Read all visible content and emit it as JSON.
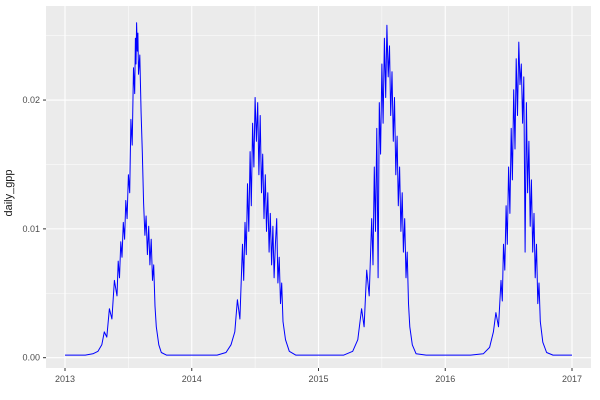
{
  "figure": {
    "background": "#FFFFFF",
    "panel_background": "#EBEBEB",
    "grid_color": "#FFFFFF",
    "axis_text_color": "#4D4D4D",
    "tick_mark_color": "#333333",
    "line_color": "#0000FF"
  },
  "chart_data": {
    "type": "line",
    "title": "",
    "xlabel": "",
    "ylabel": "daily_gpp",
    "grid": true,
    "legend": false,
    "xlim": [
      2012.85,
      2017.15
    ],
    "ylim": [
      -0.0008,
      0.0273
    ],
    "x_ticks": [
      2013,
      2014,
      2015,
      2016,
      2017
    ],
    "x_tick_labels": [
      "2013",
      "2014",
      "2015",
      "2016",
      "2017"
    ],
    "x_minor_ticks": [
      2013.5,
      2014.5,
      2015.5,
      2016.5
    ],
    "y_ticks": [
      0,
      0.01,
      0.02
    ],
    "y_tick_labels": [
      "0.00",
      "0.01",
      "0.02"
    ],
    "y_minor_ticks": [
      0.005,
      0.015,
      0.025
    ],
    "series": [
      {
        "name": "daily_gpp",
        "color": "#0000FF",
        "points": [
          [
            2013.0,
            0.0002
          ],
          [
            2013.08,
            0.0002
          ],
          [
            2013.16,
            0.0002
          ],
          [
            2013.22,
            0.0003
          ],
          [
            2013.26,
            0.0005
          ],
          [
            2013.29,
            0.001
          ],
          [
            2013.31,
            0.002
          ],
          [
            2013.33,
            0.0016
          ],
          [
            2013.35,
            0.0038
          ],
          [
            2013.37,
            0.003
          ],
          [
            2013.39,
            0.006
          ],
          [
            2013.41,
            0.0048
          ],
          [
            2013.42,
            0.0075
          ],
          [
            2013.43,
            0.0062
          ],
          [
            2013.44,
            0.009
          ],
          [
            2013.45,
            0.0078
          ],
          [
            2013.46,
            0.0105
          ],
          [
            2013.47,
            0.0092
          ],
          [
            2013.48,
            0.0122
          ],
          [
            2013.49,
            0.0108
          ],
          [
            2013.5,
            0.0142
          ],
          [
            2013.51,
            0.0128
          ],
          [
            2013.52,
            0.0185
          ],
          [
            2013.53,
            0.0165
          ],
          [
            2013.54,
            0.0225
          ],
          [
            2013.55,
            0.0205
          ],
          [
            2013.555,
            0.0248
          ],
          [
            2013.56,
            0.0228
          ],
          [
            2013.565,
            0.026
          ],
          [
            2013.57,
            0.0238
          ],
          [
            2013.575,
            0.0252
          ],
          [
            2013.58,
            0.022
          ],
          [
            2013.59,
            0.0235
          ],
          [
            2013.6,
            0.019
          ],
          [
            2013.61,
            0.016
          ],
          [
            2013.62,
            0.012
          ],
          [
            2013.63,
            0.0095
          ],
          [
            2013.64,
            0.011
          ],
          [
            2013.65,
            0.008
          ],
          [
            2013.66,
            0.0102
          ],
          [
            2013.67,
            0.0072
          ],
          [
            2013.68,
            0.0092
          ],
          [
            2013.69,
            0.006
          ],
          [
            2013.7,
            0.0072
          ],
          [
            2013.71,
            0.004
          ],
          [
            2013.72,
            0.0024
          ],
          [
            2013.74,
            0.001
          ],
          [
            2013.76,
            0.0004
          ],
          [
            2013.8,
            0.0002
          ],
          [
            2013.9,
            0.0002
          ],
          [
            2014.0,
            0.0002
          ],
          [
            2014.1,
            0.0002
          ],
          [
            2014.2,
            0.0002
          ],
          [
            2014.27,
            0.0004
          ],
          [
            2014.31,
            0.001
          ],
          [
            2014.34,
            0.002
          ],
          [
            2014.36,
            0.0045
          ],
          [
            2014.38,
            0.003
          ],
          [
            2014.4,
            0.0088
          ],
          [
            2014.41,
            0.006
          ],
          [
            2014.42,
            0.0105
          ],
          [
            2014.43,
            0.008
          ],
          [
            2014.44,
            0.0135
          ],
          [
            2014.45,
            0.0098
          ],
          [
            2014.46,
            0.016
          ],
          [
            2014.47,
            0.0118
          ],
          [
            2014.48,
            0.0182
          ],
          [
            2014.49,
            0.0148
          ],
          [
            2014.5,
            0.0202
          ],
          [
            2014.51,
            0.0168
          ],
          [
            2014.52,
            0.0198
          ],
          [
            2014.53,
            0.0142
          ],
          [
            2014.54,
            0.0188
          ],
          [
            2014.55,
            0.0128
          ],
          [
            2014.56,
            0.0158
          ],
          [
            2014.57,
            0.0108
          ],
          [
            2014.58,
            0.0142
          ],
          [
            2014.59,
            0.0098
          ],
          [
            2014.6,
            0.0128
          ],
          [
            2014.61,
            0.0082
          ],
          [
            2014.62,
            0.0112
          ],
          [
            2014.63,
            0.0072
          ],
          [
            2014.64,
            0.0102
          ],
          [
            2014.65,
            0.0062
          ],
          [
            2014.66,
            0.0088
          ],
          [
            2014.67,
            0.0108
          ],
          [
            2014.68,
            0.0058
          ],
          [
            2014.69,
            0.0078
          ],
          [
            2014.7,
            0.0042
          ],
          [
            2014.71,
            0.0058
          ],
          [
            2014.72,
            0.0028
          ],
          [
            2014.74,
            0.0014
          ],
          [
            2014.77,
            0.0005
          ],
          [
            2014.82,
            0.0002
          ],
          [
            2014.9,
            0.0002
          ],
          [
            2015.0,
            0.0002
          ],
          [
            2015.1,
            0.0002
          ],
          [
            2015.2,
            0.0002
          ],
          [
            2015.27,
            0.0005
          ],
          [
            2015.31,
            0.0014
          ],
          [
            2015.34,
            0.0038
          ],
          [
            2015.36,
            0.0024
          ],
          [
            2015.38,
            0.0068
          ],
          [
            2015.4,
            0.0048
          ],
          [
            2015.42,
            0.0108
          ],
          [
            2015.43,
            0.0072
          ],
          [
            2015.44,
            0.0148
          ],
          [
            2015.45,
            0.0098
          ],
          [
            2015.46,
            0.0178
          ],
          [
            2015.47,
            0.0062
          ],
          [
            2015.48,
            0.0198
          ],
          [
            2015.49,
            0.0158
          ],
          [
            2015.5,
            0.0228
          ],
          [
            2015.51,
            0.0182
          ],
          [
            2015.52,
            0.0248
          ],
          [
            2015.53,
            0.0202
          ],
          [
            2015.54,
            0.0258
          ],
          [
            2015.55,
            0.0218
          ],
          [
            2015.56,
            0.0242
          ],
          [
            2015.57,
            0.0188
          ],
          [
            2015.58,
            0.0222
          ],
          [
            2015.59,
            0.0168
          ],
          [
            2015.6,
            0.0202
          ],
          [
            2015.61,
            0.0142
          ],
          [
            2015.62,
            0.0172
          ],
          [
            2015.63,
            0.0118
          ],
          [
            2015.64,
            0.0148
          ],
          [
            2015.65,
            0.0098
          ],
          [
            2015.66,
            0.0128
          ],
          [
            2015.67,
            0.0082
          ],
          [
            2015.68,
            0.0108
          ],
          [
            2015.69,
            0.0062
          ],
          [
            2015.7,
            0.0082
          ],
          [
            2015.71,
            0.0042
          ],
          [
            2015.72,
            0.0024
          ],
          [
            2015.74,
            0.001
          ],
          [
            2015.77,
            0.0003
          ],
          [
            2015.85,
            0.0002
          ],
          [
            2015.95,
            0.0002
          ],
          [
            2016.0,
            0.0002
          ],
          [
            2016.1,
            0.0002
          ],
          [
            2016.2,
            0.0002
          ],
          [
            2016.3,
            0.0003
          ],
          [
            2016.35,
            0.0008
          ],
          [
            2016.38,
            0.002
          ],
          [
            2016.4,
            0.0035
          ],
          [
            2016.42,
            0.0024
          ],
          [
            2016.44,
            0.006
          ],
          [
            2016.45,
            0.0044
          ],
          [
            2016.46,
            0.0088
          ],
          [
            2016.47,
            0.0068
          ],
          [
            2016.48,
            0.0118
          ],
          [
            2016.49,
            0.0088
          ],
          [
            2016.5,
            0.0148
          ],
          [
            2016.51,
            0.0112
          ],
          [
            2016.52,
            0.0178
          ],
          [
            2016.53,
            0.0138
          ],
          [
            2016.54,
            0.0208
          ],
          [
            2016.55,
            0.0162
          ],
          [
            2016.56,
            0.0232
          ],
          [
            2016.57,
            0.0188
          ],
          [
            2016.58,
            0.0245
          ],
          [
            2016.59,
            0.0212
          ],
          [
            2016.6,
            0.0228
          ],
          [
            2016.61,
            0.0182
          ],
          [
            2016.62,
            0.0218
          ],
          [
            2016.63,
            0.0082
          ],
          [
            2016.64,
            0.0198
          ],
          [
            2016.65,
            0.0128
          ],
          [
            2016.66,
            0.0168
          ],
          [
            2016.67,
            0.0102
          ],
          [
            2016.68,
            0.0138
          ],
          [
            2016.69,
            0.0082
          ],
          [
            2016.7,
            0.0112
          ],
          [
            2016.71,
            0.0062
          ],
          [
            2016.72,
            0.0088
          ],
          [
            2016.73,
            0.0042
          ],
          [
            2016.74,
            0.0058
          ],
          [
            2016.75,
            0.0028
          ],
          [
            2016.77,
            0.0012
          ],
          [
            2016.8,
            0.0004
          ],
          [
            2016.85,
            0.0002
          ],
          [
            2016.95,
            0.0002
          ],
          [
            2017.0,
            0.0002
          ]
        ]
      }
    ]
  }
}
